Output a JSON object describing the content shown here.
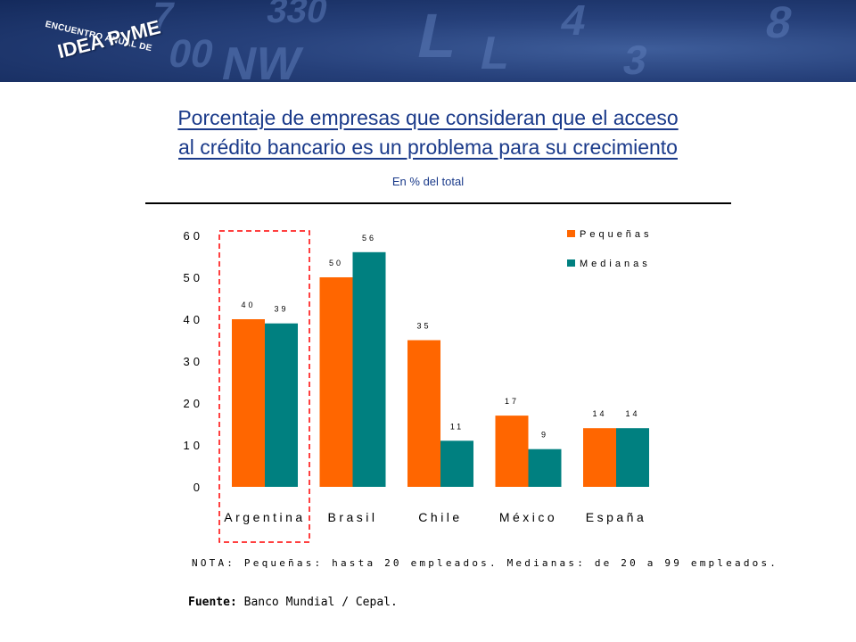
{
  "header": {
    "logo_small": "ENCUENTRO ANUAL DE",
    "logo_big": "IDEA PyME"
  },
  "title_line1": "Porcentaje de empresas que consideran que el acceso",
  "title_line2": "al crédito bancario es un problema para su crecimiento",
  "subtitle": "En % del total",
  "note": "NOTA: Pequeñas: hasta 20 empleados. Medianas: de 20 a 99 empleados.",
  "source_label": "Fuente:",
  "source_text": "Banco Mundial / Cepal.",
  "colors": {
    "pequenas": "#ff6600",
    "medianas": "#008080",
    "highlight": "#ff0000",
    "title": "#1a3a8a",
    "banner": "#1e3672"
  },
  "chart_data": {
    "type": "bar",
    "categories": [
      "Argentina",
      "Brasil",
      "Chile",
      "México",
      "España"
    ],
    "series": [
      {
        "name": "Pequeñas",
        "values": [
          40,
          50,
          35,
          17,
          14
        ]
      },
      {
        "name": "Medianas",
        "values": [
          39,
          56,
          11,
          9,
          14
        ]
      }
    ],
    "yticks": [
      0,
      10,
      20,
      30,
      40,
      50,
      60
    ],
    "ylim": [
      0,
      60
    ],
    "grid": false,
    "legend": "top-right",
    "highlighted_category": "Argentina"
  }
}
